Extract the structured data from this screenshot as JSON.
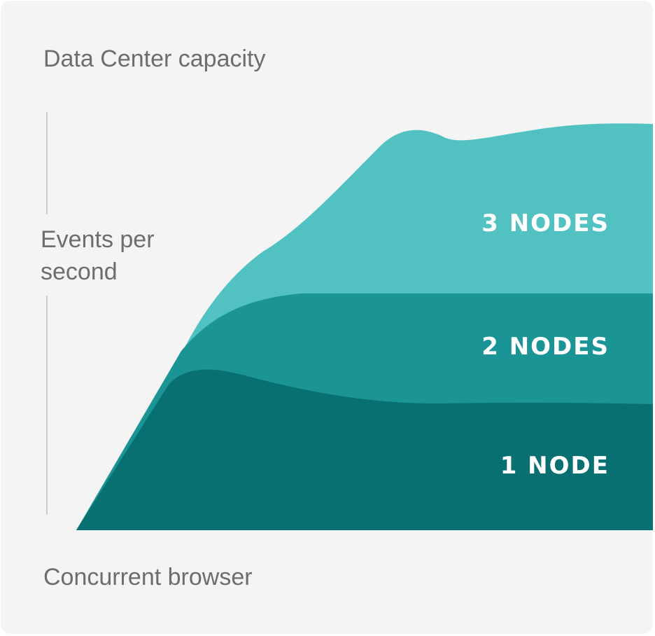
{
  "chart_data": {
    "type": "area",
    "title": "Data Center capacity",
    "xlabel": "Concurrent browser",
    "ylabel": "Events per second",
    "series": [
      {
        "name": "1 NODE",
        "color": "#087070"
      },
      {
        "name": "2 NODES",
        "color": "#1b9496"
      },
      {
        "name": "3 NODES",
        "color": "#52c1c1"
      }
    ]
  }
}
